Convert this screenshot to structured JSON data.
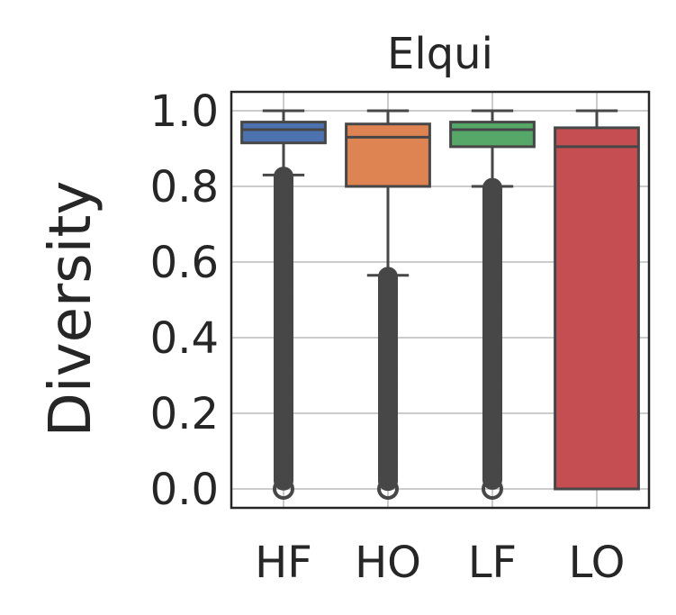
{
  "chart_data": {
    "type": "box",
    "title": "Elqui",
    "xlabel": "",
    "ylabel": "Diversity",
    "ylim": [
      -0.05,
      1.05
    ],
    "yticks": [
      0.0,
      0.2,
      0.4,
      0.6,
      0.8,
      1.0
    ],
    "ytick_labels": [
      "0.0",
      "0.2",
      "0.4",
      "0.6",
      "0.8",
      "1.0"
    ],
    "grid": true,
    "categories": [
      "HF",
      "HO",
      "LF",
      "LO"
    ],
    "colors": [
      "#4c72b0",
      "#dd8452",
      "#55a868",
      "#c44e52"
    ],
    "boxes": [
      {
        "category": "HF",
        "whisker_low": 0.83,
        "q1": 0.915,
        "median": 0.95,
        "q3": 0.97,
        "whisker_high": 1.0,
        "outliers_range": [
          0.0,
          0.83
        ]
      },
      {
        "category": "HO",
        "whisker_low": 0.565,
        "q1": 0.8,
        "median": 0.93,
        "q3": 0.965,
        "whisker_high": 1.0,
        "outliers_range": [
          0.0,
          0.565
        ]
      },
      {
        "category": "LF",
        "whisker_low": 0.8,
        "q1": 0.905,
        "median": 0.95,
        "q3": 0.97,
        "whisker_high": 1.0,
        "outliers_range": [
          0.0,
          0.8
        ]
      },
      {
        "category": "LO",
        "whisker_low": 0.0,
        "q1": 0.0,
        "median": 0.905,
        "q3": 0.955,
        "whisker_high": 1.0,
        "outliers_range": null
      }
    ]
  }
}
